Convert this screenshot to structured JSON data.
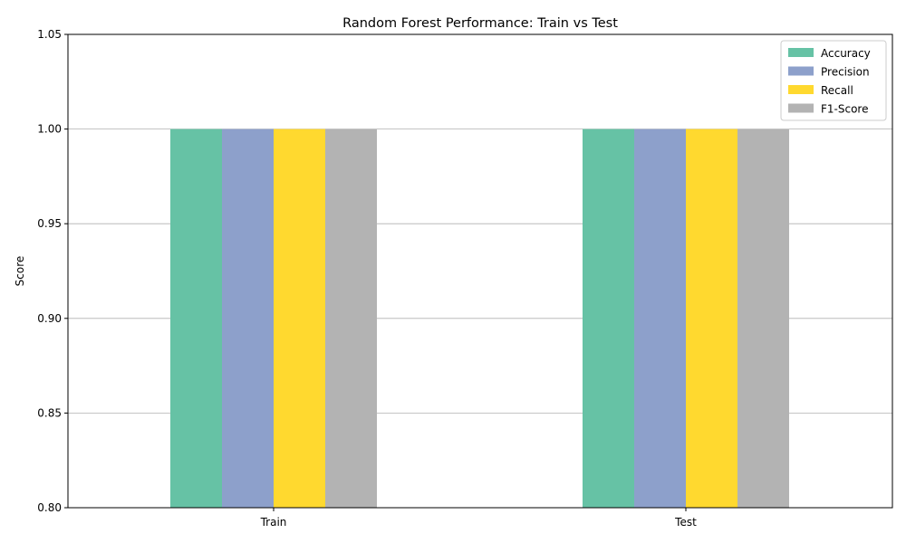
{
  "chart_data": {
    "type": "bar",
    "title": "Random Forest Performance: Train vs Test",
    "xlabel": "",
    "ylabel": "Score",
    "categories": [
      "Train",
      "Test"
    ],
    "series": [
      {
        "name": "Accuracy",
        "color": "#66c2a5",
        "values": [
          1.0,
          1.0
        ]
      },
      {
        "name": "Precision",
        "color": "#8da0cb",
        "values": [
          1.0,
          1.0
        ]
      },
      {
        "name": "Recall",
        "color": "#ffd92f",
        "values": [
          1.0,
          1.0
        ]
      },
      {
        "name": "F1-Score",
        "color": "#b3b3b3",
        "values": [
          1.0,
          1.0
        ]
      }
    ],
    "ylim": [
      0.8,
      1.05
    ],
    "yticks": [
      "0.80",
      "0.85",
      "0.90",
      "0.95",
      "1.00",
      "1.05"
    ],
    "grid": "y-axis on",
    "legend_position": "top-right"
  }
}
